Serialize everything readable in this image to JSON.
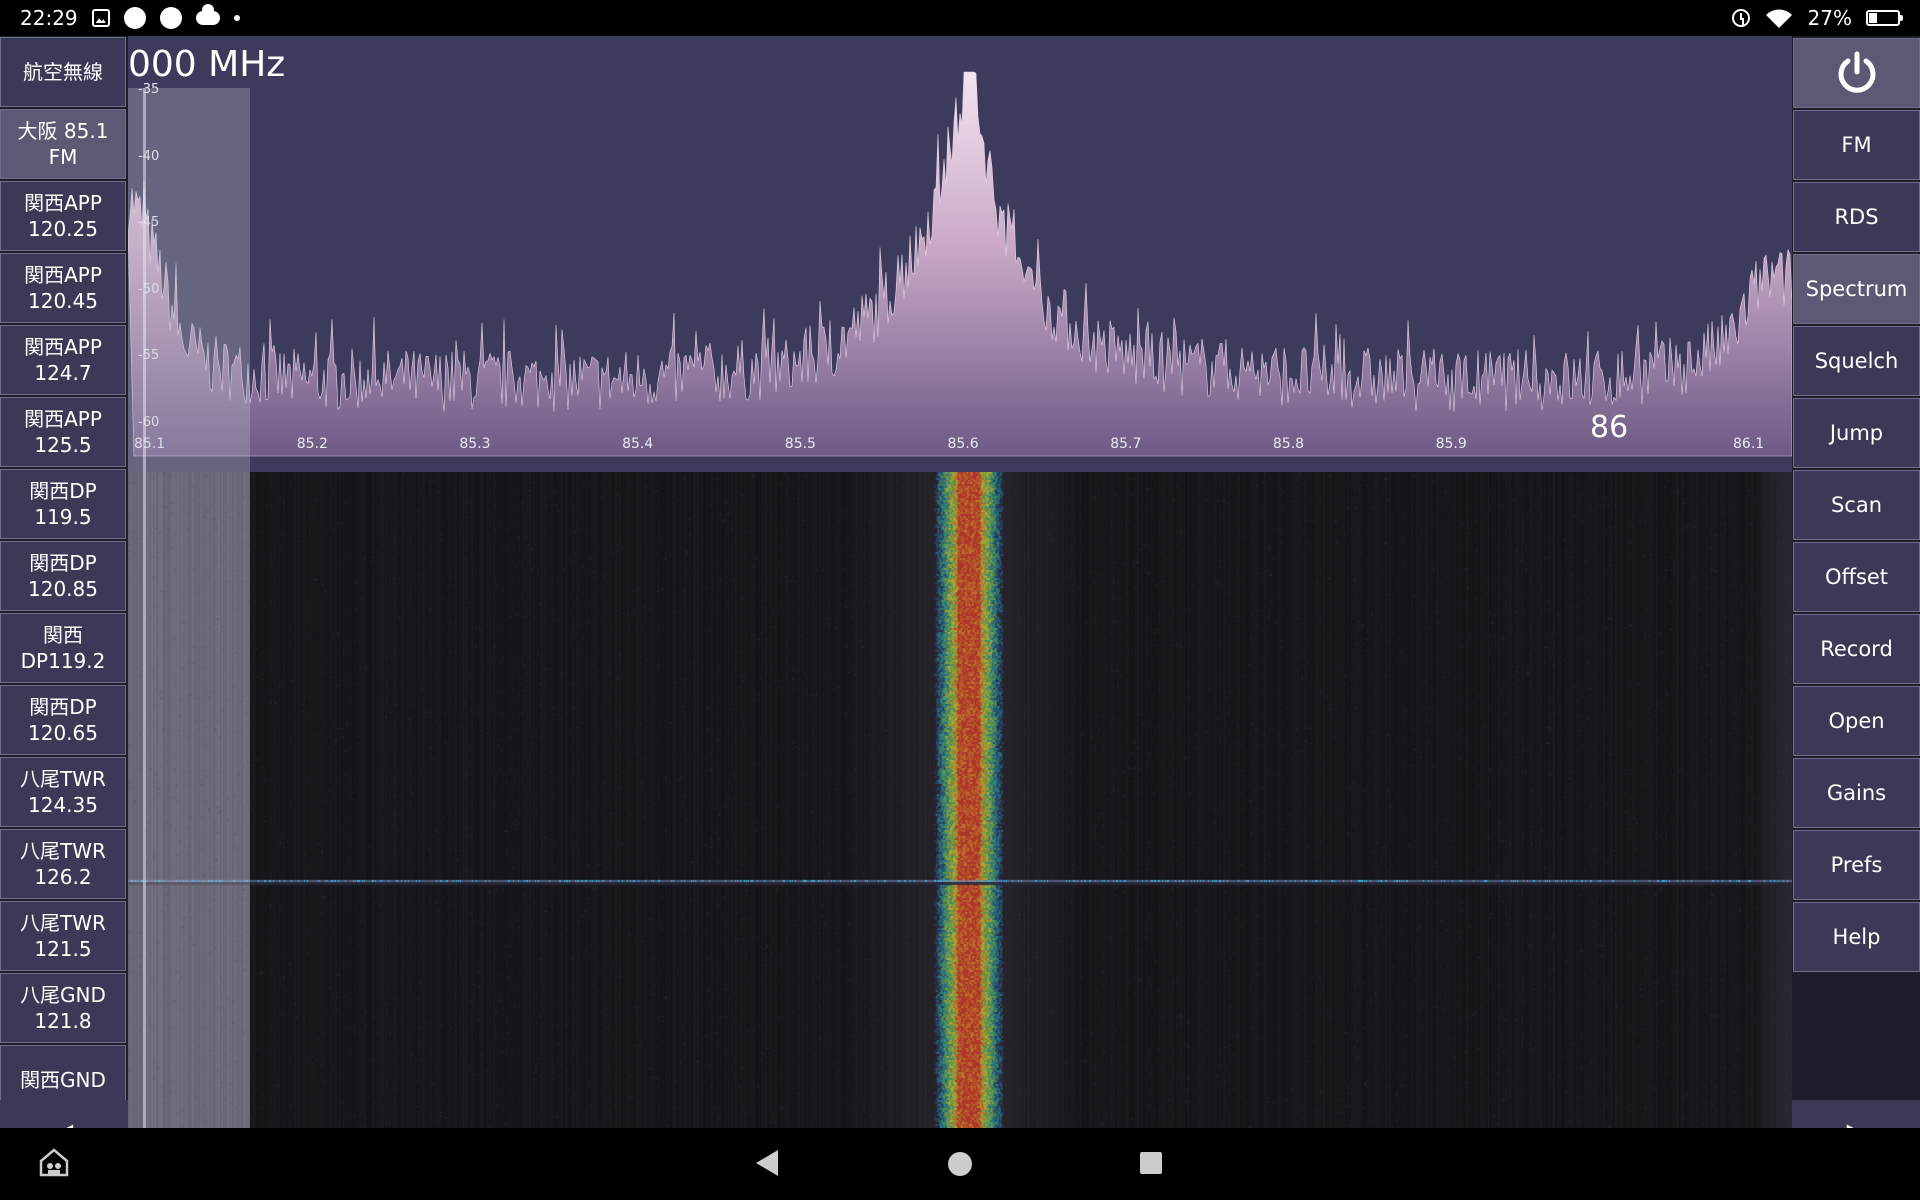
{
  "status_bar": {
    "time": "22:29",
    "battery": "27%",
    "left_icons": [
      "image-icon",
      "circle-notification-icon",
      "circle-notification-icon",
      "cloud-icon",
      "dot-icon"
    ],
    "right_icons": [
      "alarm-icon",
      "wifi-icon",
      "battery-icon"
    ]
  },
  "spectrum": {
    "frequency_readout": "000 MHz",
    "db_labels": [
      "-35",
      "-40",
      "-45",
      "-50",
      "-55",
      "-60"
    ],
    "freq_labels": [
      "85.1",
      "85.2",
      "85.3",
      "85.4",
      "85.5",
      "85.6",
      "85.7",
      "85.8",
      "85.9",
      "86.1"
    ],
    "center_mark": "86"
  },
  "chart_data": {
    "type": "area",
    "x_unit": "MHz",
    "y_unit": "dB",
    "xlim": [
      85.1,
      86.1
    ],
    "ylim": [
      -64,
      -34
    ],
    "peak": {
      "x": 85.613,
      "y": -34
    },
    "noise_floor": -58,
    "points": [
      [
        85.1,
        -44
      ],
      [
        85.11,
        -47
      ],
      [
        85.12,
        -51
      ],
      [
        85.13,
        -55
      ],
      [
        85.15,
        -57
      ],
      [
        85.2,
        -58
      ],
      [
        85.3,
        -58
      ],
      [
        85.4,
        -58
      ],
      [
        85.45,
        -57.5
      ],
      [
        85.5,
        -57
      ],
      [
        85.53,
        -55.5
      ],
      [
        85.56,
        -52
      ],
      [
        85.58,
        -48
      ],
      [
        85.595,
        -43
      ],
      [
        85.605,
        -38
      ],
      [
        85.613,
        -34
      ],
      [
        85.62,
        -38
      ],
      [
        85.63,
        -44
      ],
      [
        85.645,
        -49
      ],
      [
        85.66,
        -52
      ],
      [
        85.69,
        -55
      ],
      [
        85.72,
        -56.5
      ],
      [
        85.8,
        -57.5
      ],
      [
        85.9,
        -58
      ],
      [
        86.0,
        -58
      ],
      [
        86.05,
        -57
      ],
      [
        86.08,
        -55
      ],
      [
        86.1,
        -50
      ]
    ]
  },
  "presets": [
    {
      "line1": "航空無線",
      "line2": ""
    },
    {
      "line1": "大阪 85.1",
      "line2": "FM"
    },
    {
      "line1": "関西APP",
      "line2": "120.25"
    },
    {
      "line1": "関西APP",
      "line2": "120.45"
    },
    {
      "line1": "関西APP",
      "line2": "124.7"
    },
    {
      "line1": "関西APP",
      "line2": "125.5"
    },
    {
      "line1": "関西DP",
      "line2": "119.5"
    },
    {
      "line1": "関西DP",
      "line2": "120.85"
    },
    {
      "line1": "関西",
      "line2": "DP119.2"
    },
    {
      "line1": "関西DP",
      "line2": "120.65"
    },
    {
      "line1": "八尾TWR",
      "line2": "124.35"
    },
    {
      "line1": "八尾TWR",
      "line2": "126.2"
    },
    {
      "line1": "八尾TWR",
      "line2": "121.5"
    },
    {
      "line1": "八尾GND",
      "line2": "121.8"
    },
    {
      "line1": "関西GND",
      "line2": ""
    }
  ],
  "selected_preset_index": 1,
  "menu": [
    "FM",
    "RDS",
    "Spectrum",
    "Squelch",
    "Jump",
    "Scan",
    "Offset",
    "Record",
    "Open",
    "Gains",
    "Prefs",
    "Help"
  ],
  "selected_menu": "Spectrum",
  "arrows": {
    "left": "◀",
    "right": "▶"
  },
  "colors": {
    "panel_bg": "#3b3a56",
    "panel_selected": "#5a5a74",
    "spectrum_bg": "#3c3b5b",
    "spectrum_fill": "#c3a7c3",
    "waterfall_bg": "#161319"
  }
}
